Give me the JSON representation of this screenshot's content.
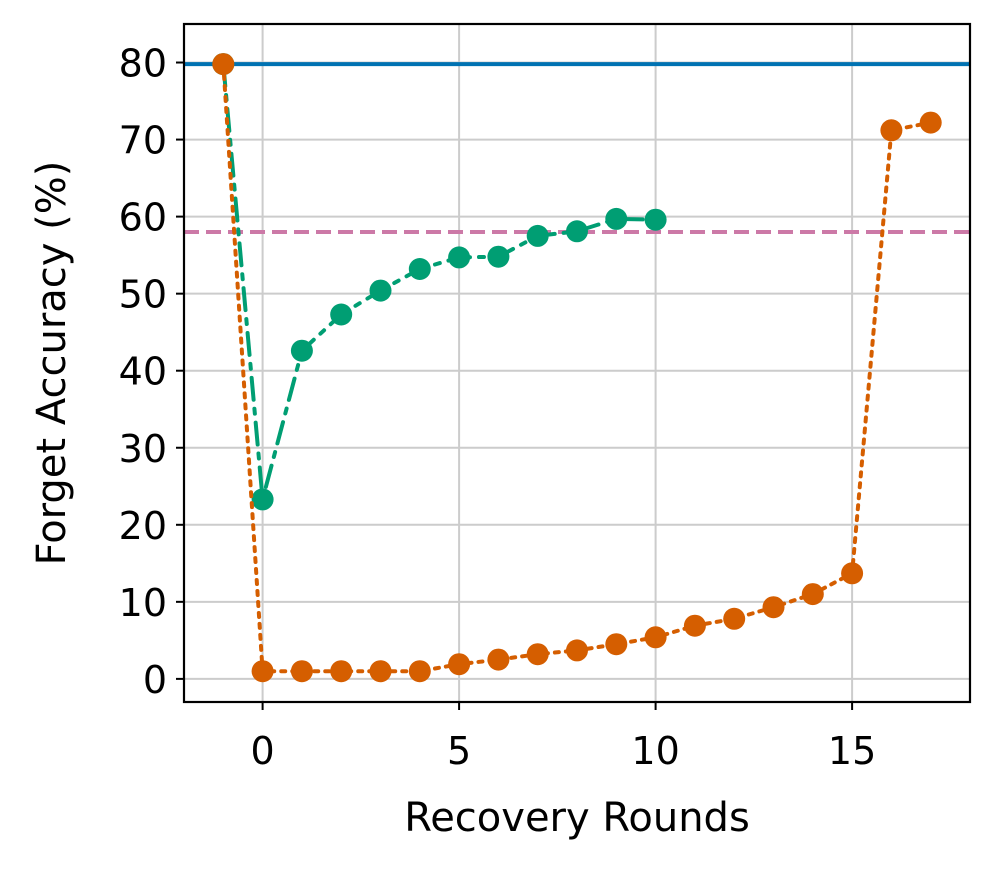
{
  "chart_data": {
    "type": "line",
    "xlabel": "Recovery Rounds",
    "ylabel": "Forget Accuracy (%)",
    "xlim": [
      -2,
      18
    ],
    "ylim": [
      -3,
      85
    ],
    "xticks": [
      0,
      5,
      10,
      15
    ],
    "yticks": [
      0,
      10,
      20,
      30,
      40,
      50,
      60,
      70,
      80
    ],
    "grid": true,
    "reference_lines": [
      {
        "y": 79.8,
        "color": "#0072B2",
        "style": "solid"
      },
      {
        "y": 58.0,
        "color": "#CC79A7",
        "style": "dashed"
      }
    ],
    "series": [
      {
        "color": "#009E73",
        "style": "dashdot",
        "marker": "circle",
        "x": [
          -1,
          0,
          1,
          2,
          3,
          4,
          5,
          6,
          7,
          8,
          9,
          10
        ],
        "y": [
          79.8,
          23.3,
          42.6,
          47.3,
          50.4,
          53.2,
          54.7,
          54.8,
          57.5,
          58.1,
          59.7,
          59.6
        ]
      },
      {
        "color": "#D55E00",
        "style": "dotted",
        "marker": "circle",
        "x": [
          -1,
          0,
          1,
          2,
          3,
          4,
          5,
          6,
          7,
          8,
          9,
          10,
          11,
          12,
          13,
          14,
          15,
          16,
          17
        ],
        "y": [
          79.8,
          1.0,
          1.0,
          1.0,
          1.0,
          1.0,
          1.9,
          2.5,
          3.2,
          3.7,
          4.5,
          5.4,
          6.9,
          7.8,
          9.3,
          11.0,
          13.7,
          71.2,
          72.2
        ]
      }
    ]
  }
}
